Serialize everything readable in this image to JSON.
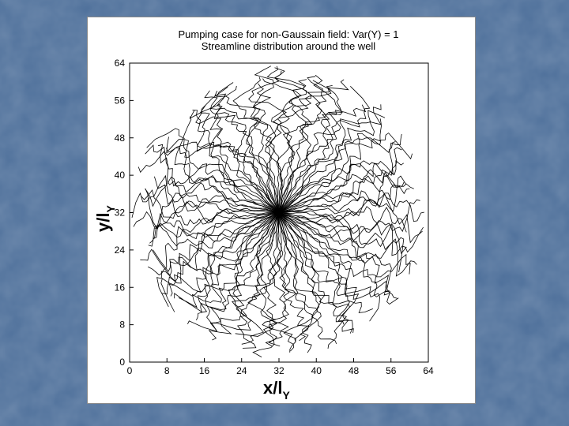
{
  "slide": {
    "background_color": "#4d6f9a",
    "panel_color": "#ffffff"
  },
  "chart_data": {
    "type": "streamline",
    "title": "Pumping case for non-Gaussain field: Var(Y) = 1",
    "subtitle": "Streamline distribution around the well",
    "xlabel_main": "x/l",
    "xlabel_sub": "Y",
    "ylabel_main": "y/l",
    "ylabel_sub": "Y",
    "xlim": [
      0,
      64
    ],
    "ylim": [
      0,
      64
    ],
    "x_ticks": [
      "0",
      "8",
      "16",
      "24",
      "32",
      "40",
      "48",
      "56",
      "64"
    ],
    "y_ticks": [
      "0",
      "8",
      "16",
      "24",
      "32",
      "40",
      "48",
      "56",
      "64"
    ],
    "well_location": [
      32,
      32
    ],
    "streamline_count": 96,
    "release_radius": 31,
    "line_color": "#000000"
  }
}
